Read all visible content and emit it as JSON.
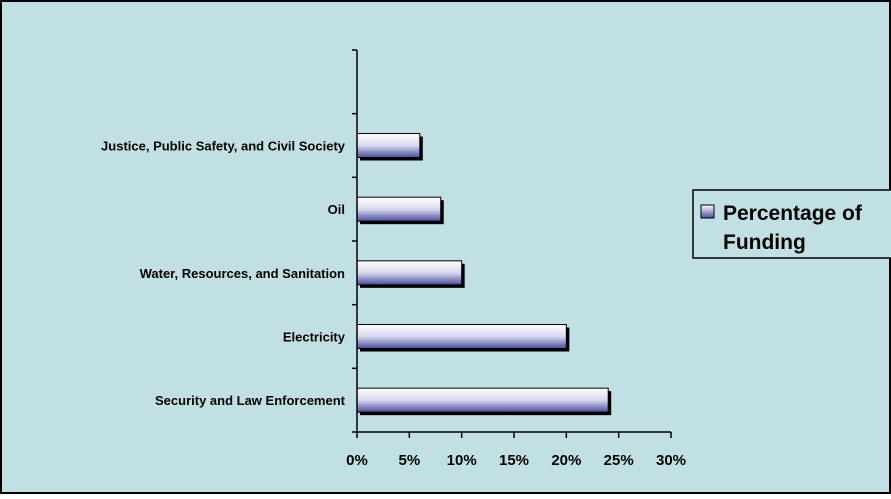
{
  "chart_data": {
    "type": "bar",
    "orientation": "horizontal",
    "title": "",
    "xlabel": "",
    "ylabel": "",
    "categories": [
      "Security and Law Enforcement",
      "Electricity",
      "Water, Resources, and Sanitation",
      "Oil",
      "Justice, Public Safety, and Civil Society",
      ""
    ],
    "series": [
      {
        "name": "Percentage of Funding",
        "values": [
          24,
          20,
          10,
          8,
          6,
          null
        ]
      }
    ],
    "xlim": [
      0,
      30
    ],
    "x_ticks": [
      "0%",
      "5%",
      "10%",
      "15%",
      "20%",
      "25%",
      "30%"
    ],
    "grid": false,
    "legend": {
      "position": "right",
      "entries": [
        "Percentage of Funding"
      ]
    },
    "colors": {
      "background": "#c1e0e3",
      "bar_fill_light": "#ffffff",
      "bar_fill_dark": "#4a4d9c",
      "bar_shadow": "#000000",
      "border": "#000000"
    }
  }
}
